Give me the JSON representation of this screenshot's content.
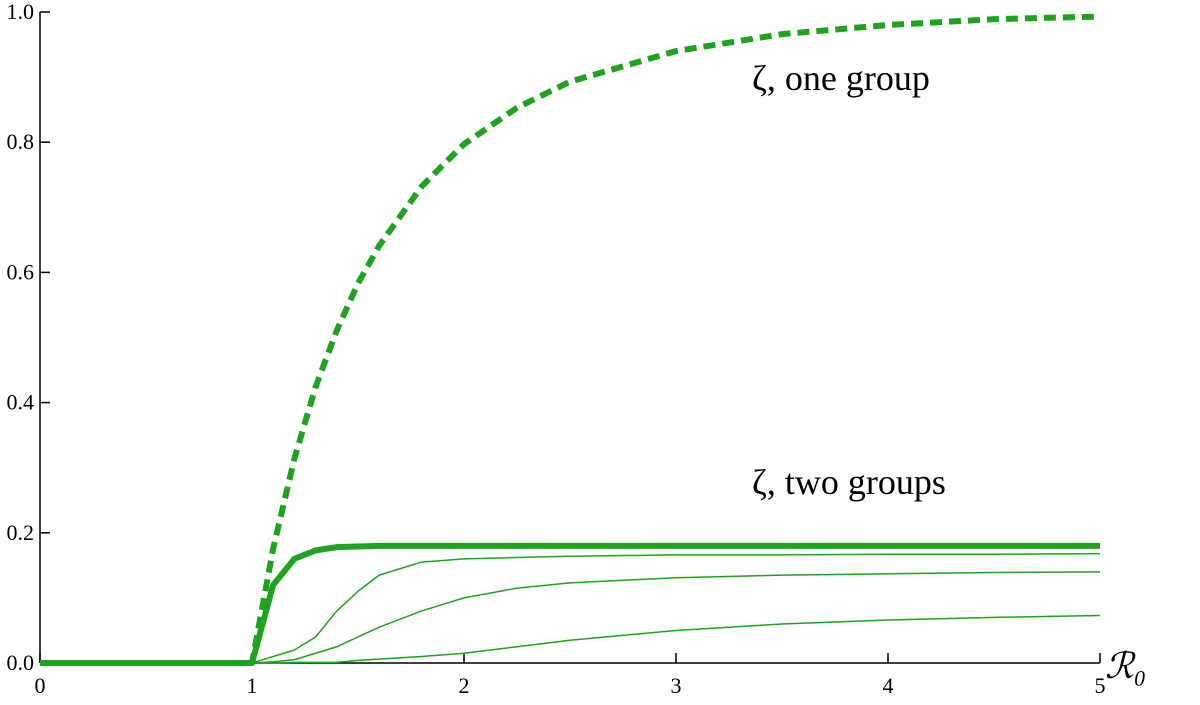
{
  "chart_data": {
    "type": "line",
    "xlabel": "ℛ₀",
    "annotations": [
      "ζ, one group",
      "ζ, two groups"
    ],
    "x": [
      0,
      0.5,
      1,
      1.1,
      1.2,
      1.3,
      1.4,
      1.5,
      1.6,
      1.8,
      2,
      2.25,
      2.5,
      3,
      3.5,
      4,
      4.5,
      5
    ],
    "series": [
      {
        "color": "#1fa21f",
        "linestyle": "dashed",
        "linewidth": 6,
        "values": [
          0,
          0,
          0,
          0.176,
          0.314,
          0.424,
          0.511,
          0.583,
          0.641,
          0.732,
          0.797,
          0.853,
          0.893,
          0.94,
          0.966,
          0.98,
          0.989,
          0.993
        ]
      },
      {
        "color": "#1fa21f",
        "linestyle": "solid",
        "linewidth": 6,
        "values": [
          0,
          0,
          0,
          0.12,
          0.16,
          0.173,
          0.178,
          0.179,
          0.18,
          0.18,
          0.18,
          0.18,
          0.18,
          0.18,
          0.18,
          0.18,
          0.18,
          0.18
        ]
      },
      {
        "color": "#1fa21f",
        "linestyle": "solid",
        "linewidth": 1.5,
        "values": [
          0,
          0,
          0,
          0.01,
          0.02,
          0.04,
          0.08,
          0.11,
          0.135,
          0.155,
          0.16,
          0.162,
          0.164,
          0.166,
          0.166,
          0.167,
          0.167,
          0.168
        ]
      },
      {
        "color": "#1fa21f",
        "linestyle": "solid",
        "linewidth": 1.5,
        "values": [
          0,
          0,
          0,
          0.002,
          0.005,
          0.015,
          0.025,
          0.04,
          0.055,
          0.08,
          0.1,
          0.115,
          0.123,
          0.131,
          0.135,
          0.137,
          0.139,
          0.14
        ]
      },
      {
        "color": "#1fa21f",
        "linestyle": "solid",
        "linewidth": 1.5,
        "values": [
          0,
          0,
          0,
          0,
          0.001,
          0.001,
          0.001,
          0.004,
          0.006,
          0.01,
          0.015,
          0.025,
          0.035,
          0.05,
          0.06,
          0.066,
          0.07,
          0.073
        ]
      }
    ],
    "xlim": [
      0,
      5
    ],
    "ylim": [
      0,
      1
    ],
    "xticks": [
      0,
      1,
      2,
      3,
      4,
      5
    ],
    "yticks": [
      {
        "value": 0,
        "label": "0.0"
      },
      {
        "value": 0.2,
        "label": "0.2"
      },
      {
        "value": 0.4,
        "label": "0.4"
      },
      {
        "value": 0.6,
        "label": "0.6"
      },
      {
        "value": 0.8,
        "label": "0.8"
      },
      {
        "value": 1,
        "label": "1.0"
      }
    ]
  }
}
